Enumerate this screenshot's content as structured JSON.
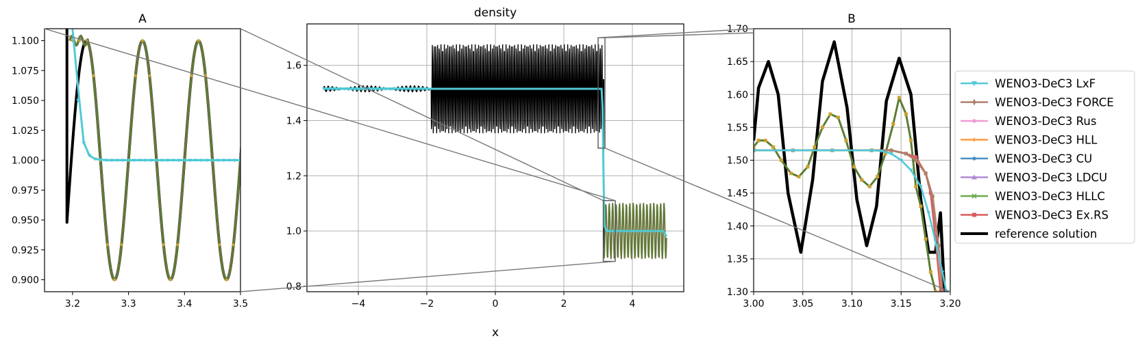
{
  "figure": {
    "xlabel": "x"
  },
  "chart_data": [
    {
      "type": "line",
      "title": "A",
      "xlim": [
        3.15,
        3.5
      ],
      "ylim": [
        0.89,
        1.11
      ],
      "xticks": [
        3.2,
        3.3,
        3.4,
        3.5
      ],
      "yticks": [
        0.9,
        0.925,
        0.95,
        0.975,
        1.0,
        1.025,
        1.05,
        1.075,
        1.1
      ],
      "grid": false,
      "series": [
        {
          "name": "WENO3-DeC3 LxF",
          "x": [
            3.2,
            3.21,
            3.22,
            3.23,
            3.24,
            3.26,
            3.3,
            3.4,
            3.5
          ],
          "y": [
            1.11,
            1.06,
            1.015,
            1.004,
            1.001,
            1.0,
            1.0,
            1.0,
            1.0
          ]
        },
        {
          "name": "WENO3-DeC3 FORCE",
          "x": [
            3.2,
            3.21,
            3.22,
            3.23,
            3.24,
            3.26,
            3.3,
            3.4,
            3.5
          ],
          "y": [
            1.08,
            1.03,
            1.006,
            1.002,
            1.001,
            1.0,
            1.0,
            1.0,
            1.0
          ]
        },
        {
          "name": "WENO3-DeC3 HLLC",
          "x": [
            3.2,
            3.205,
            3.21,
            3.215,
            3.22,
            3.225,
            3.23,
            3.25,
            3.275,
            3.3,
            3.325,
            3.35,
            3.375,
            3.4,
            3.425,
            3.45,
            3.475,
            3.5
          ],
          "y": [
            1.1,
            1.105,
            1.102,
            1.103,
            1.104,
            1.1,
            1.07,
            0.96,
            0.9,
            0.96,
            1.1,
            1.0,
            0.9,
            1.0,
            1.1,
            1.0,
            0.9,
            0.96
          ]
        },
        {
          "name": "reference solution",
          "x": [
            3.19,
            3.205,
            3.225,
            3.25,
            3.275,
            3.3,
            3.325,
            3.35,
            3.375,
            3.4,
            3.425,
            3.45,
            3.475,
            3.5
          ],
          "y": [
            0.948,
            1.06,
            1.1,
            1.0,
            0.9,
            1.0,
            1.1,
            1.0,
            0.9,
            1.0,
            1.1,
            1.0,
            0.9,
            1.0
          ]
        }
      ]
    },
    {
      "type": "line",
      "title": "density",
      "xlabel": "x",
      "xlim": [
        -5.5,
        5.5
      ],
      "ylim": [
        0.78,
        1.75
      ],
      "xticks": [
        -4,
        -2,
        0,
        2,
        4
      ],
      "yticks": [
        0.8,
        1.0,
        1.2,
        1.4,
        1.6
      ],
      "grid": true,
      "reference_solution": {
        "left_state": {
          "x_range": [
            -5.0,
            -1.875
          ],
          "center": 1.515,
          "amplitude": 0.01
        },
        "oscillating_band": {
          "x_range": [
            -1.875,
            3.13
          ],
          "center": 1.515,
          "amplitude": 0.16
        },
        "shock_x": 3.16,
        "right_band": {
          "x_range": [
            3.16,
            5.0
          ],
          "center": 1.0,
          "amplitude": 0.1
        }
      },
      "series": [
        {
          "name": "WENO3-DeC3 LxF",
          "x": [
            -5.0,
            -1.9,
            3.1,
            3.13,
            3.18,
            3.25,
            4.9,
            5.0
          ],
          "y": [
            1.515,
            1.515,
            1.515,
            1.45,
            1.02,
            1.0,
            1.0,
            0.98
          ]
        },
        {
          "name": "WENO3-DeC3 HLLC",
          "x": [
            -5.0,
            -1.9,
            3.1,
            3.13,
            3.18
          ],
          "y": [
            1.515,
            1.515,
            1.515,
            1.45,
            1.02
          ]
        }
      ],
      "zoom_boxes": [
        {
          "label": "A",
          "xlim": [
            3.15,
            3.5
          ],
          "ylim": [
            0.89,
            1.11
          ]
        },
        {
          "label": "B",
          "xlim": [
            3.0,
            3.2
          ],
          "ylim": [
            1.3,
            1.7
          ]
        }
      ]
    },
    {
      "type": "line",
      "title": "B",
      "xlim": [
        3.0,
        3.2
      ],
      "ylim": [
        1.3,
        1.7
      ],
      "xticks": [
        3.0,
        3.05,
        3.1,
        3.15,
        3.2
      ],
      "xtick_labels": [
        "3.00",
        "3.05",
        "3.10",
        "3.15",
        "3.20"
      ],
      "yticks": [
        1.3,
        1.35,
        1.4,
        1.45,
        1.5,
        1.55,
        1.6,
        1.65,
        1.7
      ],
      "ytick_labels": [
        "1.30",
        "1.35",
        "1.40",
        "1.45",
        "1.50",
        "1.55",
        "1.60",
        "1.65",
        "1.70"
      ],
      "grid": true,
      "series": [
        {
          "name": "reference solution",
          "x": [
            3.0,
            3.005,
            3.015,
            3.025,
            3.035,
            3.048,
            3.06,
            3.07,
            3.082,
            3.095,
            3.105,
            3.115,
            3.125,
            3.135,
            3.148,
            3.16,
            3.17,
            3.178,
            3.185,
            3.19,
            3.19,
            3.194
          ],
          "y": [
            1.53,
            1.61,
            1.65,
            1.6,
            1.45,
            1.36,
            1.47,
            1.62,
            1.68,
            1.58,
            1.44,
            1.37,
            1.43,
            1.59,
            1.655,
            1.6,
            1.44,
            1.36,
            1.36,
            1.42,
            1.42,
            1.3
          ]
        },
        {
          "name": "WENO3-DeC3 HLLC",
          "x": [
            3.0,
            3.005,
            3.012,
            3.02,
            3.028,
            3.038,
            3.046,
            3.055,
            3.062,
            3.07,
            3.078,
            3.086,
            3.094,
            3.102,
            3.11,
            3.118,
            3.126,
            3.134,
            3.142,
            3.148,
            3.155,
            3.16,
            3.165,
            3.17,
            3.175,
            3.18,
            3.185
          ],
          "y": [
            1.52,
            1.53,
            1.53,
            1.52,
            1.5,
            1.48,
            1.475,
            1.49,
            1.52,
            1.55,
            1.57,
            1.565,
            1.53,
            1.49,
            1.47,
            1.46,
            1.475,
            1.51,
            1.555,
            1.595,
            1.57,
            1.53,
            1.46,
            1.43,
            1.38,
            1.33,
            1.3
          ]
        },
        {
          "name": "WENO3-DeC3 Ex.RS",
          "x": [
            3.0,
            3.04,
            3.08,
            3.12,
            3.14,
            3.155,
            3.165,
            3.175,
            3.18,
            3.185,
            3.19
          ],
          "y": [
            1.515,
            1.515,
            1.515,
            1.515,
            1.515,
            1.51,
            1.505,
            1.48,
            1.45,
            1.38,
            1.3
          ]
        },
        {
          "name": "WENO3-DeC3 FORCE",
          "x": [
            3.0,
            3.04,
            3.08,
            3.12,
            3.14,
            3.155,
            3.165,
            3.175,
            3.182,
            3.188,
            3.192
          ],
          "y": [
            1.515,
            1.515,
            1.515,
            1.515,
            1.515,
            1.51,
            1.5,
            1.48,
            1.445,
            1.37,
            1.3
          ]
        },
        {
          "name": "WENO3-DeC3 LxF",
          "x": [
            3.0,
            3.04,
            3.08,
            3.12,
            3.13,
            3.14,
            3.15,
            3.16,
            3.17,
            3.178,
            3.186,
            3.192,
            3.196
          ],
          "y": [
            1.515,
            1.515,
            1.515,
            1.515,
            1.514,
            1.51,
            1.5,
            1.485,
            1.46,
            1.42,
            1.37,
            1.33,
            1.3
          ]
        }
      ]
    }
  ],
  "legend": {
    "placement": "right",
    "entries": [
      {
        "label": "WENO3-DeC3 LxF",
        "color": "#4fc9d6",
        "marker": "triangle-down"
      },
      {
        "label": "WENO3-DeC3 FORCE",
        "color": "#b07d6b",
        "marker": "diamond-thin"
      },
      {
        "label": "WENO3-DeC3 Rus",
        "color": "#ef9bd5",
        "marker": "point"
      },
      {
        "label": "WENO3-DeC3 HLL",
        "color": "#ff9a40",
        "marker": "plus"
      },
      {
        "label": "WENO3-DeC3 CU",
        "color": "#4a90c2",
        "marker": "point"
      },
      {
        "label": "WENO3-DeC3 LDCU",
        "color": "#b08ad1",
        "marker": "triangle-up"
      },
      {
        "label": "WENO3-DeC3 HLLC",
        "color": "#6aab4a",
        "marker": "x"
      },
      {
        "label": "WENO3-DeC3 Ex.RS",
        "color": "#d95c5c",
        "marker": "square"
      },
      {
        "label": "reference solution",
        "color": "#000000",
        "marker": "none"
      }
    ]
  },
  "colors": {
    "LxF": "#4fc9d6",
    "FORCE": "#b07d6b",
    "HLLC": "#6aab4a",
    "HLLC_dark": "#5a7d32",
    "ExRS": "#d95c5c",
    "reference": "#000000",
    "grid": "#b0b0b0",
    "connector": "#777777"
  }
}
